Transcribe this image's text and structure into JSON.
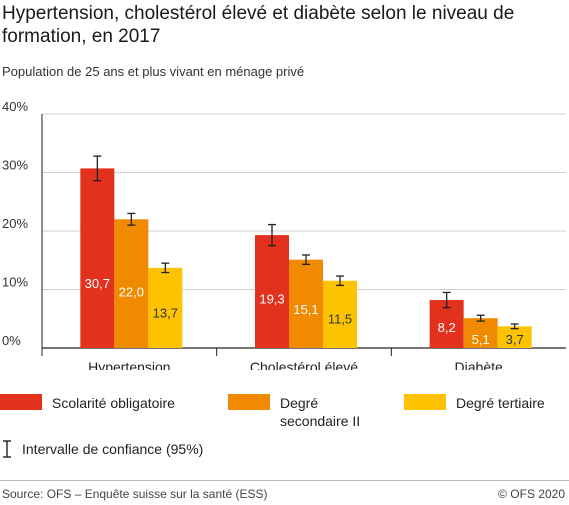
{
  "title": "Hypertension, cholestérol élevé et diabète selon le niveau de formation, en 2017",
  "subtitle": "Population de 25 ans et plus vivant en ménage privé",
  "ci_legend_label": "Intervalle de confiance (95%)",
  "source": "Source: OFS – Enquête suisse sur la santé (ESS)",
  "copyright": "© OFS 2020",
  "colors": {
    "series1": "#e2311d",
    "series2": "#f08a00",
    "series3": "#fdc300"
  },
  "chart_data": {
    "type": "bar",
    "categories": [
      "Hypertension",
      "Cholestérol élevé",
      "Diabète"
    ],
    "yticks": [
      "0%",
      "10%",
      "20%",
      "30%",
      "40%"
    ],
    "ylim": [
      0,
      40
    ],
    "grid": true,
    "legend_position": "bottom",
    "series": [
      {
        "name": "Scolarité obligatoire",
        "values": [
          30.7,
          19.3,
          8.2
        ],
        "labels": [
          "30,7",
          "19,3",
          "8,2"
        ],
        "ci_low": [
          28.6,
          17.5,
          6.9
        ],
        "ci_high": [
          32.8,
          21.1,
          9.5
        ]
      },
      {
        "name": "Degré secondaire II",
        "values": [
          22.0,
          15.1,
          5.1
        ],
        "labels": [
          "22,0",
          "15,1",
          "5,1"
        ],
        "ci_low": [
          21.0,
          14.3,
          4.6
        ],
        "ci_high": [
          23.0,
          15.9,
          5.6
        ]
      },
      {
        "name": "Degré tertiaire",
        "values": [
          13.7,
          11.5,
          3.7
        ],
        "labels": [
          "13,7",
          "11,5",
          "3,7"
        ],
        "ci_low": [
          12.9,
          10.7,
          3.3
        ],
        "ci_high": [
          14.5,
          12.3,
          4.1
        ]
      }
    ]
  }
}
